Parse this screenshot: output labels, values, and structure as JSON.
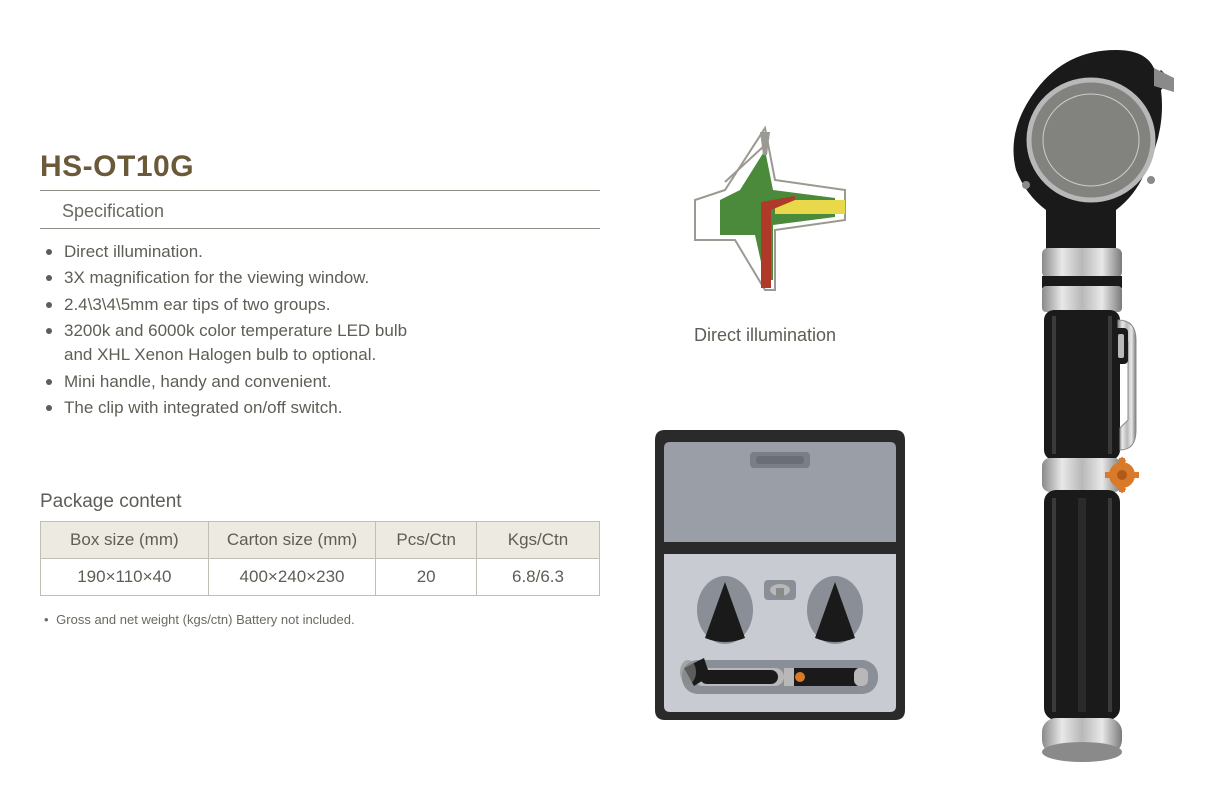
{
  "title": "HS-OT10G",
  "spec_heading": "Specification",
  "specs": [
    "Direct illumination.",
    "3X magnification for the viewing window.",
    "2.4\\3\\4\\5mm ear tips of two groups.",
    "3200k and 6000k color temperature LED bulb",
    "and XHL Xenon Halogen bulb to optional.",
    "Mini handle, handy and convenient.",
    "The clip with integrated on/off switch."
  ],
  "spec_continuation_indices": [
    4
  ],
  "diagram_caption": "Direct illumination",
  "package_heading": "Package content",
  "package_table": {
    "columns": [
      "Box size (mm)",
      "Carton size (mm)",
      "Pcs/Ctn",
      "Kgs/Ctn"
    ],
    "column_widths": [
      "30%",
      "30%",
      "18%",
      "22%"
    ],
    "rows": [
      [
        "190×110×40",
        "400×240×230",
        "20",
        "6.8/6.3"
      ]
    ],
    "header_bg": "#eceae1",
    "border_color": "#bfbfb5"
  },
  "footnote": "Gross and net weight (kgs/ctn) Battery not included.",
  "colors": {
    "title": "#6b5a3a",
    "text": "#5e5e56",
    "rule": "#8d8d85",
    "diagram_green": "#4a8a3a",
    "diagram_red": "#b03a2a",
    "diagram_yellow": "#e8d84a",
    "diagram_gray": "#9a9a92",
    "device_black": "#1a1a1a",
    "device_silver": "#b8b8b8",
    "device_silver_dark": "#8a8a8a",
    "clip_orange": "#d97a2a",
    "case_outer": "#2a2a2a",
    "case_inner": "#c8ccd2",
    "case_shadow": "#8a8e96"
  }
}
